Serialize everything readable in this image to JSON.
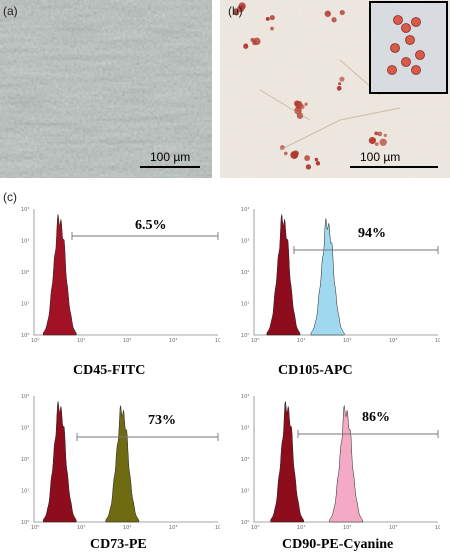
{
  "panel_a": {
    "letter": "(a)",
    "scale_label": "100 µm",
    "image_tone": "#b8c2bd"
  },
  "panel_b": {
    "letter": "(b)",
    "scale_label": "100 µm",
    "image_tone": "#efe9e1",
    "stain_color": "#b0382c"
  },
  "panel_c": {
    "letter": "(c)"
  },
  "histograms": [
    {
      "marker": "CD45-FITC",
      "percent": "6.5%",
      "fill": "#a11324",
      "show_marker_peak": false
    },
    {
      "marker": "CD105-APC",
      "percent": "94%",
      "fill": "#9fd8ef",
      "show_marker_peak": true
    },
    {
      "marker": "CD73-PE",
      "percent": "73%",
      "fill": "#6f6b12",
      "show_marker_peak": true
    },
    {
      "marker": "CD90-PE-Cyanine",
      "percent": "86%",
      "fill": "#f4a9c4",
      "show_marker_peak": true
    }
  ],
  "axis_ticks": [
    "10⁰",
    "10¹",
    "10²",
    "10³",
    "10⁴"
  ],
  "control_fill": "#8d0d1d"
}
